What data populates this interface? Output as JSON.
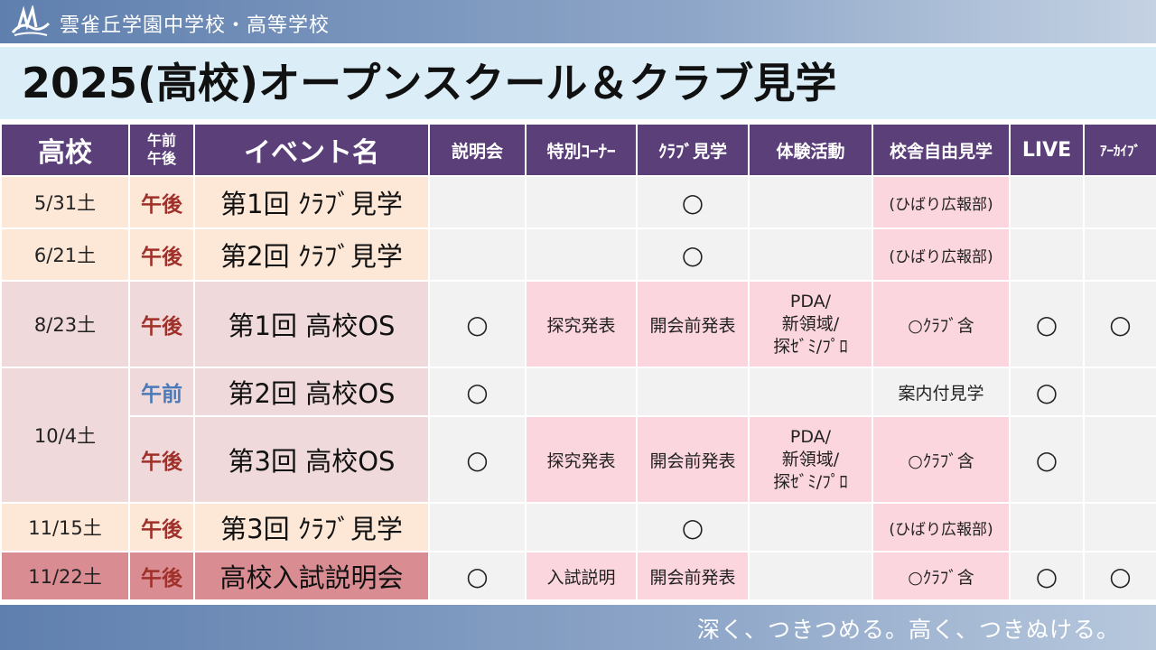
{
  "header": {
    "school_name": "雲雀丘学園中学校・高等学校",
    "title": "2025(高校)オープンスクール＆クラブ見学"
  },
  "table": {
    "headers": {
      "date": "高校",
      "ampm": "午前\n午後",
      "event": "イベント名",
      "briefing": "説明会",
      "special_corner": "特別ｺｰﾅｰ",
      "club_visit": "ｸﾗﾌﾞ見学",
      "experience": "体験活動",
      "free_tour": "校舎自由見学",
      "live": "LIVE",
      "archive": "ｱｰｶｲﾌﾞ"
    },
    "rows": [
      {
        "date": "5/31土",
        "ampm": "午後",
        "event": "第1回 ｸﾗﾌﾞ見学",
        "briefing": "",
        "special": "",
        "club": "○",
        "experience": "",
        "tour": "(ひばり広報部)",
        "live": "",
        "archive": ""
      },
      {
        "date": "6/21土",
        "ampm": "午後",
        "event": "第2回 ｸﾗﾌﾞ見学",
        "briefing": "",
        "special": "",
        "club": "○",
        "experience": "",
        "tour": "(ひばり広報部)",
        "live": "",
        "archive": ""
      },
      {
        "date": "8/23土",
        "ampm": "午後",
        "event": "第1回 高校OS",
        "briefing": "○",
        "special": "探究発表",
        "club": "開会前発表",
        "experience": "PDA/\n新領域/\n探ｾﾞﾐ/ﾌﾟﾛ",
        "tour": "○ｸﾗﾌﾞ含",
        "live": "○",
        "archive": "○"
      },
      {
        "date": "10/4土",
        "ampm": "午前",
        "event": "第2回 高校OS",
        "briefing": "○",
        "special": "",
        "club": "",
        "experience": "",
        "tour": "案内付見学",
        "live": "○",
        "archive": ""
      },
      {
        "date": "",
        "ampm": "午後",
        "event": "第3回 高校OS",
        "briefing": "○",
        "special": "探究発表",
        "club": "開会前発表",
        "experience": "PDA/\n新領域/\n探ｾﾞﾐ/ﾌﾟﾛ",
        "tour": "○ｸﾗﾌﾞ含",
        "live": "○",
        "archive": ""
      },
      {
        "date": "11/15土",
        "ampm": "午後",
        "event": "第3回 ｸﾗﾌﾞ見学",
        "briefing": "",
        "special": "",
        "club": "○",
        "experience": "",
        "tour": "(ひばり広報部)",
        "live": "",
        "archive": ""
      },
      {
        "date": "11/22土",
        "ampm": "午後",
        "event": "高校入試説明会",
        "briefing": "○",
        "special": "入試説明",
        "club": "開会前発表",
        "experience": "",
        "tour": "○ｸﾗﾌﾞ含",
        "live": "○",
        "archive": "○"
      }
    ]
  },
  "footer": {
    "slogan": "深く、つきつめる。高く、つきぬける。"
  },
  "colors": {
    "header_purple": "#5b3f79",
    "pm_red": "#a0302a",
    "am_blue": "#4a7ab8",
    "highlight_pink": "#fcd6de"
  }
}
